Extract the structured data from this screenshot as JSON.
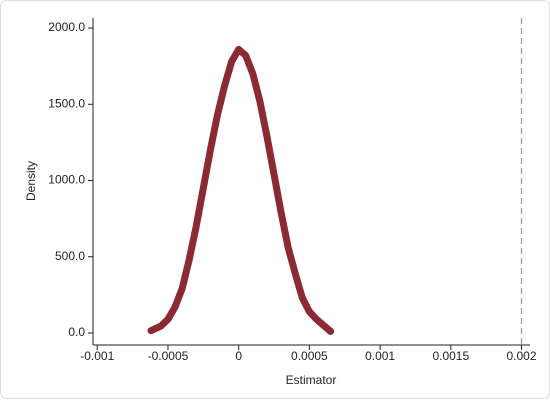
{
  "chart_data": {
    "type": "line",
    "x_label": "Estimator",
    "y_label": "Density",
    "x": [
      -0.00062,
      -0.00055,
      -0.0005,
      -0.00045,
      -0.0004,
      -0.00035,
      -0.0003,
      -0.00025,
      -0.0002,
      -0.00015,
      -0.0001,
      -5e-05,
      0,
      5e-05,
      0.0001,
      0.00015,
      0.0002,
      0.00025,
      0.0003,
      0.00035,
      0.0004,
      0.00045,
      0.0005,
      0.00055,
      0.0006,
      0.00065
    ],
    "series": [
      {
        "color": "#8c2a33",
        "values": [
          15,
          45,
          90,
          170,
          290,
          480,
          700,
          950,
          1200,
          1430,
          1620,
          1780,
          1860,
          1820,
          1700,
          1520,
          1290,
          1040,
          790,
          560,
          390,
          230,
          140,
          90,
          50,
          10
        ]
      }
    ],
    "vline": 0.002,
    "xlim": [
      -0.00103,
      0.00206
    ],
    "ylim": [
      -79,
      2066
    ],
    "xticks": [
      -0.001,
      -0.0005,
      0,
      0.0005,
      0.001,
      0.0015,
      0.002
    ],
    "yticks": [
      {
        "value": 0,
        "label": "0.0"
      },
      {
        "value": 500,
        "label": "500.0"
      },
      {
        "value": 1000,
        "label": "1000.0"
      },
      {
        "value": 1500,
        "label": "1500.0"
      },
      {
        "value": 2000,
        "label": "2000.0"
      }
    ]
  }
}
